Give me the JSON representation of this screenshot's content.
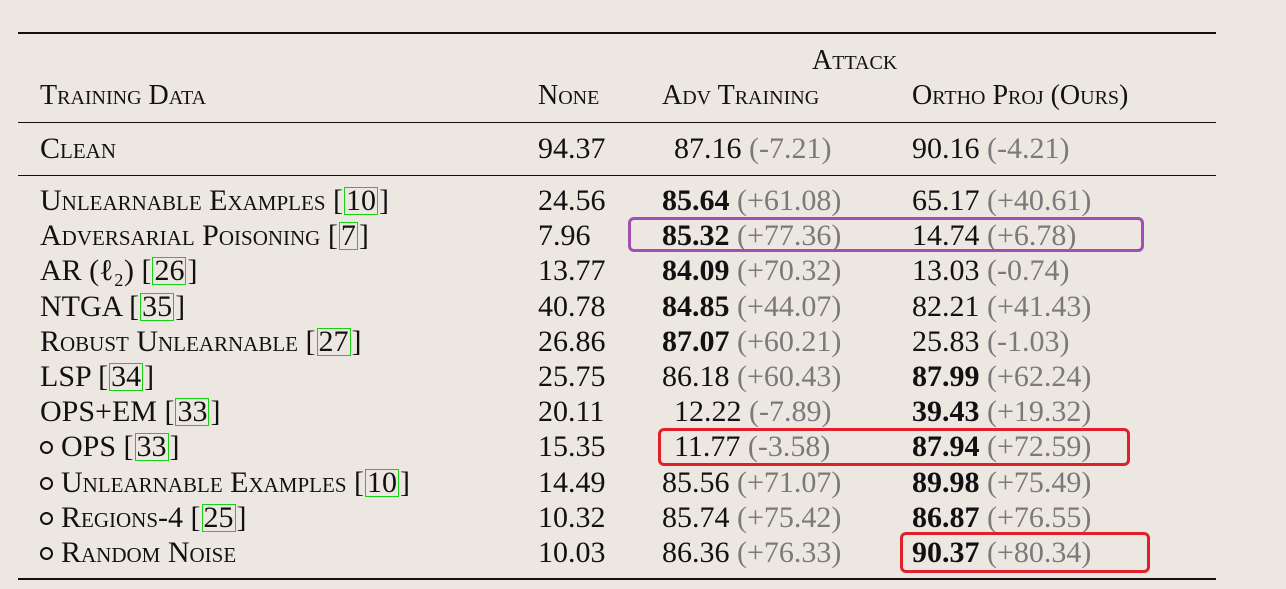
{
  "header": {
    "group_label": "Attack",
    "col_training": "Training Data",
    "col_none": "None",
    "col_adv": "Adv Training",
    "col_ortho": "Ortho Proj (Ours)"
  },
  "clean": {
    "name": "Clean",
    "none": "94.37",
    "adv_val": "87.16",
    "adv_delta": "(-7.21)",
    "ortho_val": "90.16",
    "ortho_delta": "(-4.21)"
  },
  "rows": [
    {
      "prefix": "",
      "name": "Unlearnable Examples [",
      "cite": "10",
      "suffix": "]",
      "none": "24.56",
      "adv_val": "85.64",
      "adv_delta": "(+61.08)",
      "ortho_val": "65.17",
      "ortho_delta": "(+40.61)",
      "adv_bold": true,
      "ortho_bold": false
    },
    {
      "prefix": "",
      "name": "Adversarial Poisoning [",
      "cite": "7",
      "suffix": "]",
      "none": "7.96",
      "adv_val": "85.32",
      "adv_delta": "(+77.36)",
      "ortho_val": "14.74",
      "ortho_delta": "(+6.78)",
      "adv_bold": true,
      "ortho_bold": false
    },
    {
      "prefix": "",
      "name": "AR (ℓ₂) [",
      "cite": "26",
      "suffix": "]",
      "none": "13.77",
      "adv_val": "84.09",
      "adv_delta": "(+70.32)",
      "ortho_val": "13.03",
      "ortho_delta": "(-0.74)",
      "adv_bold": true,
      "ortho_bold": false
    },
    {
      "prefix": "",
      "name": "NTGA [",
      "cite": "35",
      "suffix": "]",
      "none": "40.78",
      "adv_val": "84.85",
      "adv_delta": "(+44.07)",
      "ortho_val": "82.21",
      "ortho_delta": "(+41.43)",
      "adv_bold": true,
      "ortho_bold": false
    },
    {
      "prefix": "",
      "name": "Robust Unlearnable [",
      "cite": "27",
      "suffix": "]",
      "none": "26.86",
      "adv_val": "87.07",
      "adv_delta": "(+60.21)",
      "ortho_val": "25.83",
      "ortho_delta": "(-1.03)",
      "adv_bold": true,
      "ortho_bold": false
    },
    {
      "prefix": "",
      "name": "LSP [",
      "cite": "34",
      "suffix": "]",
      "none": "25.75",
      "adv_val": "86.18",
      "adv_delta": "(+60.43)",
      "ortho_val": "87.99",
      "ortho_delta": "(+62.24)",
      "adv_bold": false,
      "ortho_bold": true
    },
    {
      "prefix": "",
      "name": "OPS+EM [",
      "cite": "33",
      "suffix": "]",
      "none": "20.11",
      "adv_val": "12.22",
      "adv_delta": "(-7.89)",
      "ortho_val": "39.43",
      "ortho_delta": "(+19.32)",
      "adv_bold": false,
      "ortho_bold": true
    },
    {
      "prefix": "circ",
      "name": "OPS [",
      "cite": "33",
      "suffix": "]",
      "none": "15.35",
      "adv_val": "11.77",
      "adv_delta": "(-3.58)",
      "ortho_val": "87.94",
      "ortho_delta": "(+72.59)",
      "adv_bold": false,
      "ortho_bold": true
    },
    {
      "prefix": "circ",
      "name": "Unlearnable Examples [",
      "cite": "10",
      "suffix": "]",
      "none": "14.49",
      "adv_val": "85.56",
      "adv_delta": "(+71.07)",
      "ortho_val": "89.98",
      "ortho_delta": "(+75.49)",
      "adv_bold": false,
      "ortho_bold": true
    },
    {
      "prefix": "circ",
      "name": "Regions-4 [",
      "cite": "25",
      "suffix": "]",
      "none": "10.32",
      "adv_val": "85.74",
      "adv_delta": "(+75.42)",
      "ortho_val": "86.87",
      "ortho_delta": "(+76.55)",
      "adv_bold": false,
      "ortho_bold": true
    },
    {
      "prefix": "circ",
      "name": "Random Noise",
      "cite": "",
      "suffix": "",
      "none": "10.03",
      "adv_val": "86.36",
      "adv_delta": "(+76.33)",
      "ortho_val": "90.37",
      "ortho_delta": "(+80.34)",
      "adv_bold": false,
      "ortho_bold": true
    }
  ],
  "colors": {
    "highlight_purple": "#a04fb3",
    "highlight_red": "#e0202a",
    "citation_box": "#16d116",
    "delta_text": "#7a7a7a"
  }
}
